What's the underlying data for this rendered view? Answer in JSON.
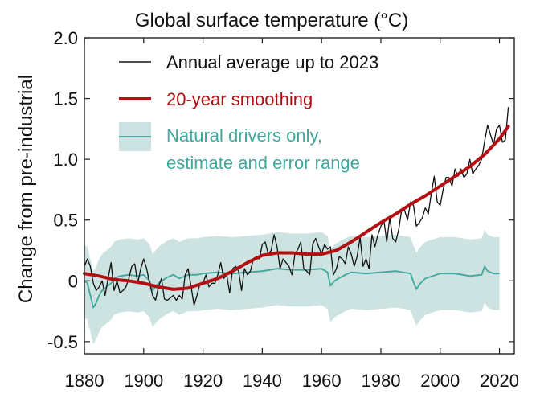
{
  "chart_data": {
    "type": "line",
    "title": "Global surface temperature (°C)",
    "ylabel": "Change from pre-industrial",
    "xlabel": "",
    "xlim": [
      1880,
      2025
    ],
    "ylim": [
      -0.6,
      2.0
    ],
    "x_ticks": [
      1880,
      1900,
      1920,
      1940,
      1960,
      1980,
      2000,
      2020
    ],
    "y_ticks": [
      -0.5,
      0,
      0.5,
      1.0,
      1.5,
      2.0
    ],
    "y_tick_labels": [
      "-0.5",
      "0",
      "0.5",
      "1.0",
      "1.5",
      "2.0"
    ],
    "legend_position": "top-left",
    "grid": false,
    "colors": {
      "annual": "#111111",
      "smooth": "#b30f12",
      "natural_line": "#3fa79b",
      "natural_band": "#cde3e1"
    },
    "legend": {
      "annual": "Annual average up to 2023",
      "smooth": "20-year smoothing",
      "natural_line1": "Natural drivers only,",
      "natural_line2": "estimate and error range"
    },
    "series": [
      {
        "key": "annual",
        "name": "Annual average up to 2023",
        "x": [
          1880,
          1881,
          1882,
          1883,
          1884,
          1885,
          1886,
          1887,
          1888,
          1889,
          1890,
          1891,
          1892,
          1893,
          1894,
          1895,
          1896,
          1897,
          1898,
          1899,
          1900,
          1901,
          1902,
          1903,
          1904,
          1905,
          1906,
          1907,
          1908,
          1909,
          1910,
          1911,
          1912,
          1913,
          1914,
          1915,
          1916,
          1917,
          1918,
          1919,
          1920,
          1921,
          1922,
          1923,
          1924,
          1925,
          1926,
          1927,
          1928,
          1929,
          1930,
          1931,
          1932,
          1933,
          1934,
          1935,
          1936,
          1937,
          1938,
          1939,
          1940,
          1941,
          1942,
          1943,
          1944,
          1945,
          1946,
          1947,
          1948,
          1949,
          1950,
          1951,
          1952,
          1953,
          1954,
          1955,
          1956,
          1957,
          1958,
          1959,
          1960,
          1961,
          1962,
          1963,
          1964,
          1965,
          1966,
          1967,
          1968,
          1969,
          1970,
          1971,
          1972,
          1973,
          1974,
          1975,
          1976,
          1977,
          1978,
          1979,
          1980,
          1981,
          1982,
          1983,
          1984,
          1985,
          1986,
          1987,
          1988,
          1989,
          1990,
          1991,
          1992,
          1993,
          1994,
          1995,
          1996,
          1997,
          1998,
          1999,
          2000,
          2001,
          2002,
          2003,
          2004,
          2005,
          2006,
          2007,
          2008,
          2009,
          2010,
          2011,
          2012,
          2013,
          2014,
          2015,
          2016,
          2017,
          2018,
          2019,
          2020,
          2021,
          2022,
          2023
        ],
        "y": [
          0.12,
          0.18,
          0.12,
          -0.02,
          -0.08,
          -0.05,
          0.0,
          -0.12,
          0.02,
          0.15,
          -0.08,
          0.0,
          -0.1,
          -0.08,
          -0.05,
          0.02,
          0.12,
          0.14,
          -0.02,
          0.1,
          0.18,
          0.1,
          -0.02,
          -0.12,
          -0.16,
          -0.05,
          0.02,
          -0.15,
          -0.16,
          -0.14,
          -0.12,
          -0.16,
          -0.12,
          -0.15,
          0.05,
          0.1,
          -0.05,
          -0.2,
          -0.12,
          -0.02,
          -0.02,
          0.05,
          -0.05,
          -0.02,
          -0.02,
          0.05,
          0.15,
          0.02,
          0.05,
          -0.1,
          0.1,
          0.12,
          0.08,
          -0.08,
          0.1,
          0.05,
          0.08,
          0.18,
          0.2,
          0.18,
          0.3,
          0.32,
          0.22,
          0.25,
          0.38,
          0.28,
          0.1,
          0.18,
          0.15,
          0.12,
          0.05,
          0.22,
          0.26,
          0.32,
          0.1,
          0.08,
          0.05,
          0.3,
          0.35,
          0.28,
          0.22,
          0.3,
          0.26,
          0.28,
          0.05,
          0.1,
          0.2,
          0.18,
          0.14,
          0.28,
          0.22,
          0.12,
          0.2,
          0.36,
          0.12,
          0.18,
          0.1,
          0.38,
          0.28,
          0.38,
          0.45,
          0.5,
          0.32,
          0.52,
          0.35,
          0.32,
          0.42,
          0.58,
          0.58,
          0.5,
          0.65,
          0.62,
          0.45,
          0.48,
          0.52,
          0.6,
          0.55,
          0.72,
          0.86,
          0.65,
          0.62,
          0.75,
          0.85,
          0.85,
          0.78,
          0.92,
          0.86,
          0.92,
          0.85,
          0.88,
          1.0,
          0.88,
          0.92,
          0.95,
          1.0,
          1.15,
          1.28,
          1.2,
          1.12,
          1.25,
          1.28,
          1.14,
          1.16,
          1.43
        ]
      },
      {
        "key": "smooth",
        "name": "20-year smoothing",
        "x": [
          1880,
          1885,
          1890,
          1895,
          1900,
          1905,
          1910,
          1915,
          1920,
          1925,
          1930,
          1935,
          1940,
          1945,
          1950,
          1955,
          1960,
          1965,
          1970,
          1975,
          1980,
          1985,
          1990,
          1995,
          2000,
          2005,
          2010,
          2015,
          2020,
          2023
        ],
        "y": [
          0.06,
          0.04,
          0.01,
          0.0,
          -0.02,
          -0.05,
          -0.07,
          -0.06,
          -0.02,
          0.02,
          0.08,
          0.15,
          0.21,
          0.23,
          0.23,
          0.22,
          0.22,
          0.25,
          0.32,
          0.4,
          0.48,
          0.55,
          0.63,
          0.7,
          0.78,
          0.86,
          0.94,
          1.04,
          1.17,
          1.27
        ]
      },
      {
        "key": "natural",
        "name": "Natural drivers only, estimate and error range",
        "x": [
          1880,
          1881,
          1882,
          1883,
          1884,
          1885,
          1886,
          1887,
          1888,
          1889,
          1890,
          1892,
          1895,
          1898,
          1900,
          1902,
          1903,
          1905,
          1908,
          1910,
          1912,
          1915,
          1918,
          1920,
          1925,
          1930,
          1935,
          1940,
          1945,
          1950,
          1955,
          1960,
          1962,
          1963,
          1964,
          1965,
          1968,
          1970,
          1975,
          1980,
          1985,
          1990,
          1991,
          1992,
          1993,
          1995,
          2000,
          2005,
          2010,
          2014,
          2015,
          2016,
          2018,
          2020
        ],
        "y": [
          0.0,
          -0.02,
          -0.12,
          -0.22,
          -0.18,
          -0.12,
          -0.08,
          -0.06,
          -0.04,
          -0.02,
          0.02,
          0.04,
          0.05,
          0.04,
          0.05,
          0.0,
          -0.08,
          -0.02,
          0.03,
          0.05,
          0.02,
          0.05,
          0.05,
          0.06,
          0.07,
          0.06,
          0.07,
          0.08,
          0.1,
          0.09,
          0.09,
          0.1,
          0.07,
          -0.04,
          -0.01,
          0.01,
          0.05,
          0.07,
          0.06,
          0.07,
          0.08,
          0.06,
          -0.01,
          -0.07,
          -0.03,
          0.02,
          0.06,
          0.06,
          0.04,
          0.05,
          0.12,
          0.08,
          0.06,
          0.06
        ],
        "lower": [
          -0.3,
          -0.32,
          -0.42,
          -0.52,
          -0.48,
          -0.42,
          -0.38,
          -0.36,
          -0.34,
          -0.32,
          -0.28,
          -0.26,
          -0.25,
          -0.26,
          -0.25,
          -0.3,
          -0.38,
          -0.32,
          -0.27,
          -0.25,
          -0.28,
          -0.25,
          -0.25,
          -0.24,
          -0.23,
          -0.24,
          -0.23,
          -0.22,
          -0.2,
          -0.21,
          -0.21,
          -0.2,
          -0.23,
          -0.34,
          -0.31,
          -0.29,
          -0.25,
          -0.23,
          -0.24,
          -0.23,
          -0.22,
          -0.24,
          -0.31,
          -0.37,
          -0.33,
          -0.28,
          -0.24,
          -0.24,
          -0.26,
          -0.25,
          -0.18,
          -0.22,
          -0.24,
          -0.24
        ],
        "upper": [
          0.3,
          0.28,
          0.18,
          0.08,
          0.12,
          0.18,
          0.22,
          0.24,
          0.26,
          0.28,
          0.32,
          0.34,
          0.35,
          0.34,
          0.35,
          0.3,
          0.22,
          0.28,
          0.33,
          0.35,
          0.32,
          0.35,
          0.35,
          0.36,
          0.37,
          0.36,
          0.37,
          0.38,
          0.4,
          0.39,
          0.39,
          0.4,
          0.37,
          0.26,
          0.29,
          0.31,
          0.35,
          0.37,
          0.36,
          0.37,
          0.38,
          0.36,
          0.29,
          0.23,
          0.27,
          0.32,
          0.36,
          0.36,
          0.34,
          0.35,
          0.42,
          0.38,
          0.36,
          0.36
        ]
      }
    ]
  }
}
